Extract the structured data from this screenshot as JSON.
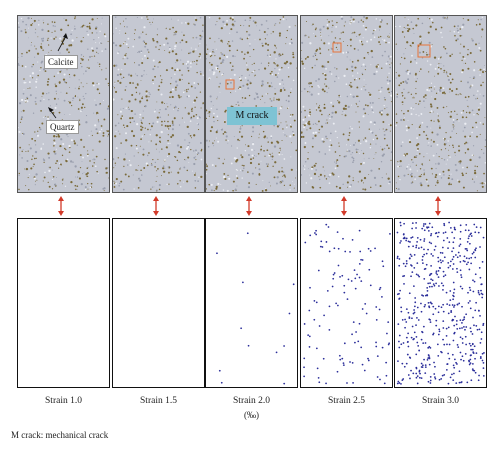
{
  "panels": [
    {
      "strain": "Strain 1.0",
      "cracks": 0
    },
    {
      "strain": "Strain 1.5",
      "cracks": 0
    },
    {
      "strain": "Strain 2.0",
      "cracks": 12
    },
    {
      "strain": "Strain 2.5",
      "cracks": 120
    },
    {
      "strain": "Strain 3.0",
      "cracks": 520
    }
  ],
  "labels": {
    "calcite": "Calcite",
    "quartz": "Quartz",
    "m_crack": "M crack",
    "unit": "(‰)",
    "footnote": "M crack: mechanical crack"
  },
  "colors": {
    "rock": "#c5c8d2",
    "grain": "#7a6a3a",
    "crack": "#2b2e9a",
    "highlight": "#e8743b",
    "arrow": "#d23a2a",
    "callout": "#7ec3d4"
  }
}
